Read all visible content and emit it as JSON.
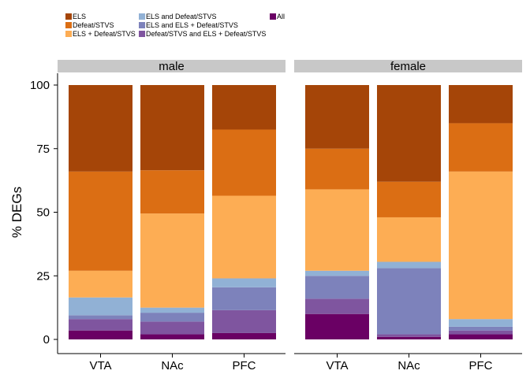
{
  "chart_data": {
    "type": "bar",
    "stacked": true,
    "ylabel": "% DEGs",
    "xlabel": "",
    "ylim": [
      0,
      100
    ],
    "yticks": [
      0,
      25,
      50,
      75,
      100
    ],
    "categories": [
      "VTA",
      "NAc",
      "PFC"
    ],
    "legend_position": "top-left",
    "series": [
      {
        "name": "All",
        "color": "#6a0064"
      },
      {
        "name": "Defeat/STVS and ELS + Defeat/STVS",
        "color": "#7f559f"
      },
      {
        "name": "ELS and ELS + Defeat/STVS",
        "color": "#7d82bb"
      },
      {
        "name": "ELS and Defeat/STVS",
        "color": "#91b1d5"
      },
      {
        "name": "ELS + Defeat/STVS",
        "color": "#fdad54"
      },
      {
        "name": "Defeat/STVS",
        "color": "#db6e14"
      },
      {
        "name": "ELS",
        "color": "#a54508"
      }
    ],
    "legend_order": [
      "ELS",
      "Defeat/STVS",
      "ELS + Defeat/STVS",
      "ELS and Defeat/STVS",
      "ELS and ELS + Defeat/STVS",
      "Defeat/STVS and ELS + Defeat/STVS",
      "All"
    ],
    "panels": [
      {
        "label": "male",
        "bars": [
          {
            "category": "VTA",
            "values": [
              3.5,
              4.5,
              1.5,
              7.0,
              10.5,
              39.0,
              34.0
            ]
          },
          {
            "category": "NAc",
            "values": [
              2.0,
              5.0,
              3.5,
              2.0,
              37.0,
              17.0,
              33.5
            ]
          },
          {
            "category": "PFC",
            "values": [
              2.5,
              9.0,
              9.0,
              3.5,
              32.5,
              26.0,
              17.5
            ]
          }
        ]
      },
      {
        "label": "female",
        "bars": [
          {
            "category": "VTA",
            "values": [
              10.0,
              6.0,
              9.0,
              2.0,
              32.0,
              16.0,
              25.0
            ]
          },
          {
            "category": "NAc",
            "values": [
              1.0,
              1.0,
              26.0,
              2.5,
              17.5,
              14.0,
              38.0
            ]
          },
          {
            "category": "PFC",
            "values": [
              2.0,
              1.5,
              1.5,
              3.0,
              58.0,
              19.0,
              15.0
            ]
          }
        ]
      }
    ]
  }
}
